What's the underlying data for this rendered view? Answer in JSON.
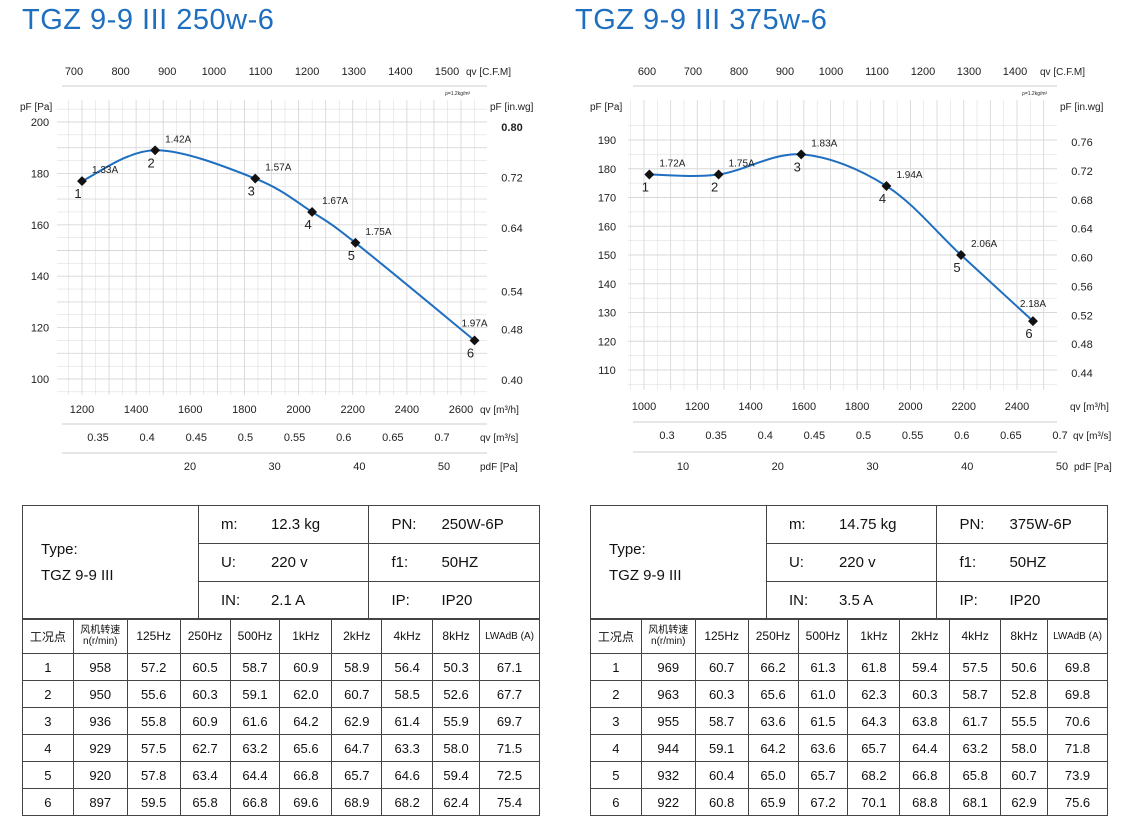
{
  "titles": [
    "TGZ 9-9 III 250w-6",
    "TGZ 9-9 III 375w-6"
  ],
  "colors": {
    "title": "#1f6fc0",
    "curve": "#1f6fc0",
    "grid": "#d8d8d8",
    "marker": "#111111"
  },
  "chart_data": [
    {
      "type": "line",
      "title": "TGZ 9-9 III 250w-6",
      "xlabel": "qv [m³/h]",
      "ylabel": "pF [Pa]",
      "y2label": "pF [in.wg]",
      "x2label_top": "qv [C.F.M]",
      "x3label": "qv [m³/s]",
      "x4label": "pdF [Pa]",
      "density_note": "ρ=1.2kg/m³",
      "grid": true,
      "xlim": [
        1100,
        2700
      ],
      "ylim": [
        95,
        205
      ],
      "x_ticks": [
        1200,
        1400,
        1600,
        1800,
        2000,
        2200,
        2400,
        2600
      ],
      "y_ticks": [
        100,
        120,
        140,
        160,
        180,
        200
      ],
      "cfm_ticks": [
        700,
        800,
        900,
        1000,
        1100,
        1200,
        1300,
        1400,
        1500
      ],
      "m3s_ticks": [
        0.35,
        0.4,
        0.45,
        0.5,
        0.55,
        0.6,
        0.65,
        0.7
      ],
      "pdf_ticks": [
        20,
        30,
        40,
        50
      ],
      "inwg_ticks": [
        0.8,
        0.72,
        0.64,
        0.54,
        0.48,
        0.4
      ],
      "points": [
        {
          "id": "1",
          "x": 1200,
          "y": 177,
          "current": "1.33A"
        },
        {
          "id": "2",
          "x": 1470,
          "y": 189,
          "current": "1.42A"
        },
        {
          "id": "3",
          "x": 1840,
          "y": 178,
          "current": "1.57A"
        },
        {
          "id": "4",
          "x": 2050,
          "y": 165,
          "current": "1.67A"
        },
        {
          "id": "5",
          "x": 2210,
          "y": 153,
          "current": "1.75A"
        },
        {
          "id": "6",
          "x": 2650,
          "y": 115,
          "current": "1.97A"
        }
      ]
    },
    {
      "type": "line",
      "title": "TGZ 9-9 III 375w-6",
      "xlabel": "qv [m³/h]",
      "ylabel": "pF [Pa]",
      "y2label": "pF [in.wg]",
      "x2label_top": "qv [C.F.M]",
      "x3label": "qv [m³/s]",
      "x4label": "pdF [Pa]",
      "density_note": "ρ=1.2kg/m³",
      "grid": true,
      "xlim": [
        950,
        2500
      ],
      "ylim": [
        102,
        198
      ],
      "x_ticks": [
        1000,
        1200,
        1400,
        1600,
        1800,
        2000,
        2200,
        2400
      ],
      "y_ticks": [
        110,
        120,
        130,
        140,
        150,
        160,
        170,
        180,
        190
      ],
      "cfm_ticks": [
        600,
        700,
        800,
        900,
        1000,
        1100,
        1200,
        1300,
        1400
      ],
      "m3s_ticks": [
        0.3,
        0.35,
        0.4,
        0.45,
        0.5,
        0.55,
        0.6,
        0.65,
        0.7
      ],
      "pdf_ticks": [
        10,
        20,
        30,
        40,
        50
      ],
      "inwg_ticks": [
        0.76,
        0.72,
        0.68,
        0.64,
        0.6,
        0.56,
        0.52,
        0.48,
        0.44
      ],
      "points": [
        {
          "id": "1",
          "x": 1020,
          "y": 178,
          "current": "1.72A"
        },
        {
          "id": "2",
          "x": 1280,
          "y": 178,
          "current": "1.75A"
        },
        {
          "id": "3",
          "x": 1590,
          "y": 185,
          "current": "1.83A"
        },
        {
          "id": "4",
          "x": 1910,
          "y": 174,
          "current": "1.94A"
        },
        {
          "id": "5",
          "x": 2190,
          "y": 150,
          "current": "2.06A"
        },
        {
          "id": "6",
          "x": 2460,
          "y": 127,
          "current": "2.18A"
        }
      ]
    }
  ],
  "tables": [
    {
      "type_label": "Type:",
      "type_value": "TGZ 9-9 III",
      "specs": [
        [
          {
            "k": "m:",
            "v": "12.3  kg"
          },
          {
            "k": "PN:",
            "v": "250W-6P"
          }
        ],
        [
          {
            "k": "U:",
            "v": "220  v"
          },
          {
            "k": "f1:",
            "v": "50HZ"
          }
        ],
        [
          {
            "k": "IN:",
            "v": "2.1  A"
          },
          {
            "k": "IP:",
            "v": "IP20"
          }
        ]
      ],
      "header": {
        "point": "工况点",
        "speed": "风机转速",
        "speed_unit": "n(r/min)",
        "bands": [
          "125Hz",
          "250Hz",
          "500Hz",
          "1kHz",
          "2kHz",
          "4kHz",
          "8kHz"
        ],
        "lwa": "LWAdB (A)"
      },
      "rows": [
        [
          "1",
          "958",
          "57.2",
          "60.5",
          "58.7",
          "60.9",
          "58.9",
          "56.4",
          "50.3",
          "67.1"
        ],
        [
          "2",
          "950",
          "55.6",
          "60.3",
          "59.1",
          "62.0",
          "60.7",
          "58.5",
          "52.6",
          "67.7"
        ],
        [
          "3",
          "936",
          "55.8",
          "60.9",
          "61.6",
          "64.2",
          "62.9",
          "61.4",
          "55.9",
          "69.7"
        ],
        [
          "4",
          "929",
          "57.5",
          "62.7",
          "63.2",
          "65.6",
          "64.7",
          "63.3",
          "58.0",
          "71.5"
        ],
        [
          "5",
          "920",
          "57.8",
          "63.4",
          "64.4",
          "66.8",
          "65.7",
          "64.6",
          "59.4",
          "72.5"
        ],
        [
          "6",
          "897",
          "59.5",
          "65.8",
          "66.8",
          "69.6",
          "68.9",
          "68.2",
          "62.4",
          "75.4"
        ]
      ]
    },
    {
      "type_label": "Type:",
      "type_value": "TGZ 9-9 III",
      "specs": [
        [
          {
            "k": "m:",
            "v": "14.75 kg"
          },
          {
            "k": "PN:",
            "v": "375W-6P"
          }
        ],
        [
          {
            "k": "U:",
            "v": "220  v"
          },
          {
            "k": "f1:",
            "v": "50HZ"
          }
        ],
        [
          {
            "k": "IN:",
            "v": "3.5  A"
          },
          {
            "k": "IP:",
            "v": "IP20"
          }
        ]
      ],
      "header": {
        "point": "工况点",
        "speed": "风机转速",
        "speed_unit": "n(r/min)",
        "bands": [
          "125Hz",
          "250Hz",
          "500Hz",
          "1kHz",
          "2kHz",
          "4kHz",
          "8kHz"
        ],
        "lwa": "LWAdB (A)"
      },
      "rows": [
        [
          "1",
          "969",
          "60.7",
          "66.2",
          "61.3",
          "61.8",
          "59.4",
          "57.5",
          "50.6",
          "69.8"
        ],
        [
          "2",
          "963",
          "60.3",
          "65.6",
          "61.0",
          "62.3",
          "60.3",
          "58.7",
          "52.8",
          "69.8"
        ],
        [
          "3",
          "955",
          "58.7",
          "63.6",
          "61.5",
          "64.3",
          "63.8",
          "61.7",
          "55.5",
          "70.6"
        ],
        [
          "4",
          "944",
          "59.1",
          "64.2",
          "63.6",
          "65.7",
          "64.4",
          "63.2",
          "58.0",
          "71.8"
        ],
        [
          "5",
          "932",
          "60.4",
          "65.0",
          "65.7",
          "68.2",
          "66.8",
          "65.8",
          "60.7",
          "73.9"
        ],
        [
          "6",
          "922",
          "60.8",
          "65.9",
          "67.2",
          "70.1",
          "68.8",
          "68.1",
          "62.9",
          "75.6"
        ]
      ]
    }
  ]
}
